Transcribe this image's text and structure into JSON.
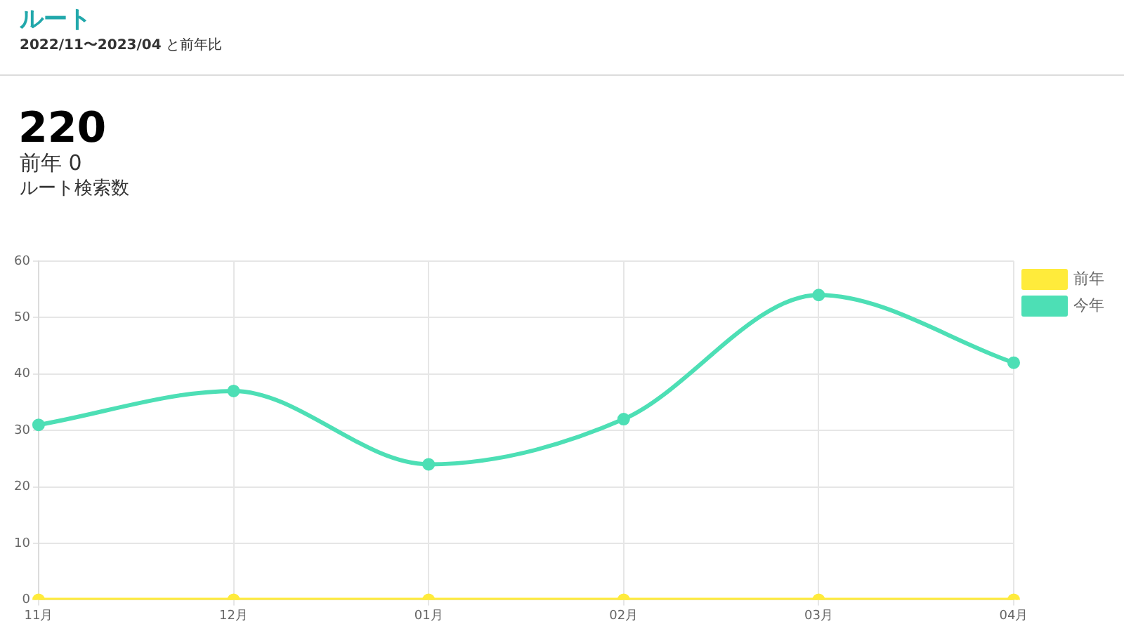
{
  "chart_data": {
    "type": "line",
    "title": "ルート",
    "subtitle": "2022/11〜2023/04 と前年比",
    "annotations": [
      "220",
      "前年 0",
      "ルート検索数"
    ],
    "categories": [
      "11月",
      "12月",
      "01月",
      "02月",
      "03月",
      "04月"
    ],
    "series": [
      {
        "name": "前年",
        "color": "#ffeb3b",
        "values": [
          0,
          0,
          0,
          0,
          0,
          0
        ]
      },
      {
        "name": "今年",
        "color": "#4ddfb5",
        "values": [
          31,
          37,
          24,
          32,
          54,
          42
        ]
      }
    ],
    "ylim": [
      0,
      60
    ],
    "yticks": [
      0,
      10,
      20,
      30,
      40,
      50,
      60
    ],
    "grid": true,
    "legend": "top right",
    "marker": "circle"
  }
}
